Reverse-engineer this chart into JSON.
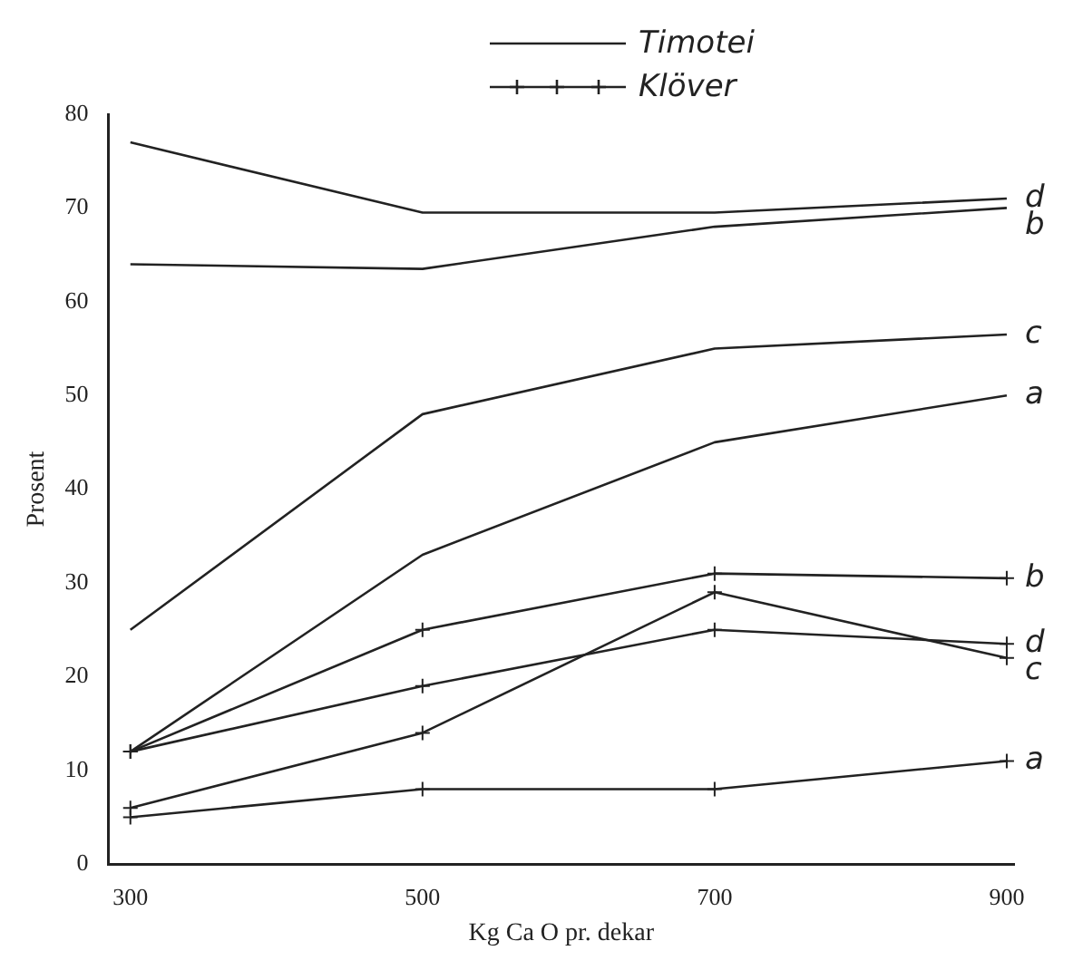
{
  "chart_data": {
    "type": "line",
    "xlabel": "Kg Ca O pr. dekar",
    "ylabel": "Prosent",
    "x": [
      300,
      500,
      700,
      900
    ],
    "series": [
      {
        "name": "d",
        "color": "#222222",
        "marker": "none",
        "values": [
          77,
          69.5,
          69.5,
          71
        ]
      },
      {
        "name": "b",
        "color": "#222222",
        "marker": "none",
        "values": [
          64,
          63.5,
          68,
          70
        ]
      },
      {
        "name": "c",
        "color": "#222222",
        "marker": "none",
        "values": [
          25,
          48,
          55,
          56.5
        ]
      },
      {
        "name": "a",
        "color": "#222222",
        "marker": "none",
        "values": [
          12,
          33,
          45,
          50
        ]
      },
      {
        "name": "b",
        "color": "#222222",
        "marker": "cross",
        "values": [
          12,
          25,
          31,
          30.5
        ]
      },
      {
        "name": "d",
        "color": "#222222",
        "marker": "cross",
        "values": [
          12,
          19,
          25,
          23.5
        ]
      },
      {
        "name": "c",
        "color": "#222222",
        "marker": "cross",
        "values": [
          6,
          14,
          29,
          22
        ]
      },
      {
        "name": "a",
        "color": "#222222",
        "marker": "cross",
        "values": [
          5,
          8,
          8,
          11
        ]
      }
    ],
    "annotations": [
      "Timotei",
      "Klöver"
    ],
    "xlim": [
      285,
      905
    ],
    "ylim": [
      0,
      80
    ],
    "xticks": [
      300,
      500,
      700,
      900
    ],
    "yticks": [
      0,
      10,
      20,
      30,
      40,
      50,
      60,
      70,
      80
    ],
    "grid": false,
    "line_style": "solid"
  }
}
